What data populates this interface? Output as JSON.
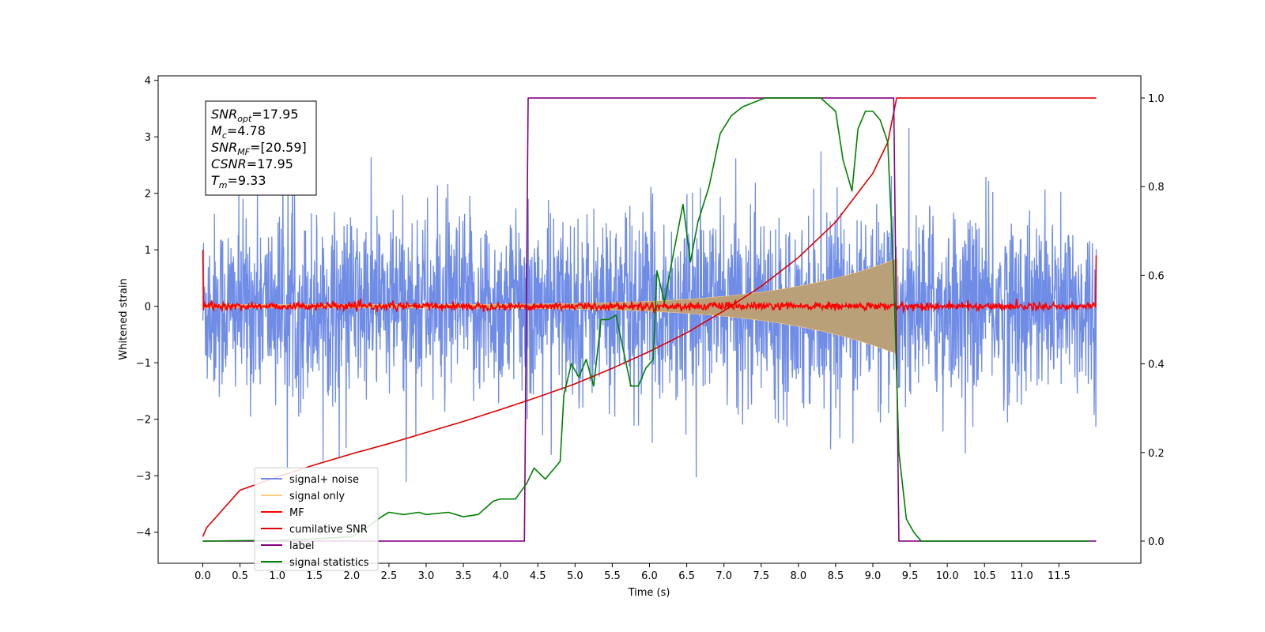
{
  "chart_data": {
    "type": "line",
    "title": "",
    "xlabel": "Time (s)",
    "ylabel": "Whitened strain",
    "y2label": "",
    "xlim": [
      -0.6,
      12.6
    ],
    "ylim": [
      -4.55,
      4.08
    ],
    "y2lim": [
      -0.05,
      1.05
    ],
    "x_ticks": [
      "0.0",
      "0.5",
      "1.0",
      "1.5",
      "2.0",
      "2.5",
      "3.0",
      "3.5",
      "4.0",
      "4.5",
      "5.0",
      "5.5",
      "6.0",
      "6.5",
      "7.0",
      "7.5",
      "8.0",
      "8.5",
      "9.0",
      "9.5",
      "10.0",
      "10.5",
      "11.0",
      "11.5"
    ],
    "y_ticks": [
      "4",
      "3",
      "2",
      "1",
      "0",
      "−1",
      "−2",
      "−3",
      "−4"
    ],
    "y2_ticks": [
      "1.0",
      "0.8",
      "0.6",
      "0.4",
      "0.2",
      "0.0"
    ],
    "grid": false,
    "legend_position": "lower-left",
    "annotation": {
      "position": "top-left",
      "lines": [
        {
          "sym": "SNR",
          "sub": "opt",
          "rest": "=17.95"
        },
        {
          "sym": "M",
          "sub": "c",
          "rest": "=4.78"
        },
        {
          "sym": "SNR",
          "sub": "MF",
          "rest": "=[20.59]"
        },
        {
          "sym": "CSNR",
          "sub": "",
          "rest": "=17.95"
        },
        {
          "sym": "T",
          "sub": "m",
          "rest": "=9.33"
        }
      ]
    },
    "series": [
      {
        "name": "signal+ noise",
        "color": "#6f8ce6",
        "axis": "left",
        "kind": "noise",
        "x_range": [
          0.0,
          12.0
        ],
        "envelope": 1.3,
        "peak_range": [
          -4.2,
          3.7
        ]
      },
      {
        "name": "signal only",
        "color": "#ffcc80",
        "fill": "#b9a079",
        "axis": "left",
        "kind": "chirp",
        "x_range": [
          0.0,
          9.33
        ],
        "amplitude_start": 0.03,
        "amplitude_end": 0.85
      },
      {
        "name": "MF",
        "color": "#ff0000",
        "axis": "left",
        "kind": "mf",
        "x_range": [
          0.0,
          12.0
        ],
        "level": 0.0,
        "edge_values": [
          1.0,
          0.9
        ]
      },
      {
        "name": "cumilative SNR",
        "color": "#e00000",
        "axis": "right",
        "x": [
          0.0,
          0.05,
          0.5,
          1.0,
          1.5,
          2.0,
          2.5,
          3.0,
          3.5,
          4.0,
          4.5,
          5.0,
          5.5,
          6.0,
          6.5,
          7.0,
          7.5,
          8.0,
          8.5,
          9.0,
          9.2,
          9.32,
          12.0
        ],
        "y": [
          0.01,
          0.03,
          0.115,
          0.145,
          0.172,
          0.197,
          0.22,
          0.245,
          0.27,
          0.297,
          0.325,
          0.355,
          0.39,
          0.428,
          0.47,
          0.52,
          0.575,
          0.64,
          0.72,
          0.83,
          0.9,
          1.0,
          1.0
        ]
      },
      {
        "name": "label",
        "color": "#800080",
        "axis": "right",
        "x": [
          0.0,
          4.32,
          4.37,
          9.28,
          9.35,
          12.0
        ],
        "y": [
          0.0,
          0.0,
          1.0,
          1.0,
          0.0,
          0.0
        ]
      },
      {
        "name": "signal statistics",
        "color": "#008000",
        "axis": "right",
        "x": [
          0.0,
          0.5,
          1.0,
          1.5,
          2.0,
          2.2,
          2.4,
          2.5,
          2.7,
          2.9,
          3.0,
          3.3,
          3.5,
          3.7,
          3.9,
          4.0,
          4.2,
          4.35,
          4.45,
          4.6,
          4.7,
          4.8,
          4.85,
          4.95,
          5.05,
          5.15,
          5.25,
          5.35,
          5.45,
          5.55,
          5.65,
          5.75,
          5.85,
          5.95,
          6.05,
          6.1,
          6.2,
          6.3,
          6.45,
          6.55,
          6.65,
          6.8,
          6.95,
          7.1,
          7.25,
          7.4,
          7.55,
          7.75,
          8.0,
          8.3,
          8.5,
          8.6,
          8.72,
          8.8,
          8.9,
          9.0,
          9.1,
          9.2,
          9.28,
          9.35,
          9.45,
          9.55,
          9.65,
          10.0,
          11.0,
          11.9
        ],
        "y": [
          0.0,
          0.001,
          0.002,
          0.005,
          0.01,
          0.03,
          0.055,
          0.065,
          0.06,
          0.065,
          0.06,
          0.065,
          0.055,
          0.06,
          0.09,
          0.095,
          0.095,
          0.13,
          0.165,
          0.14,
          0.16,
          0.18,
          0.33,
          0.4,
          0.37,
          0.41,
          0.35,
          0.5,
          0.5,
          0.51,
          0.43,
          0.35,
          0.35,
          0.39,
          0.41,
          0.61,
          0.54,
          0.63,
          0.76,
          0.63,
          0.72,
          0.8,
          0.92,
          0.96,
          0.98,
          0.99,
          1.0,
          1.0,
          1.0,
          1.0,
          0.97,
          0.86,
          0.79,
          0.93,
          0.97,
          0.97,
          0.95,
          0.9,
          0.6,
          0.2,
          0.05,
          0.02,
          0.0,
          0.0,
          0.0,
          0.0
        ]
      }
    ]
  }
}
